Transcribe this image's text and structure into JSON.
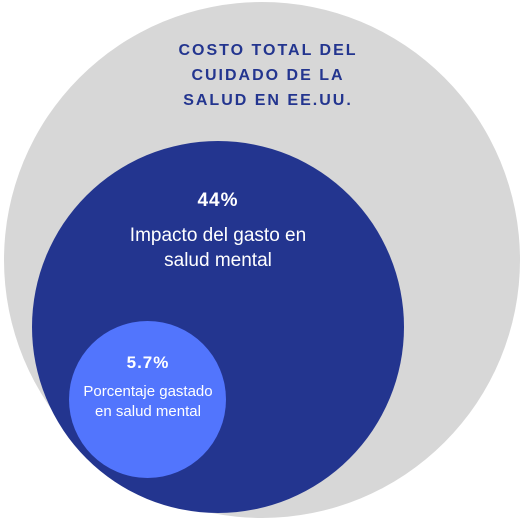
{
  "diagram": {
    "outer": {
      "title_lines": [
        "COSTO TOTAL DEL",
        "CUIDADO DE LA",
        "SALUD EN EE.UU."
      ],
      "color": "#d7d7d7",
      "title_color": "#23358f"
    },
    "middle": {
      "value": "44%",
      "label_lines": [
        "Impacto del gasto en",
        "salud mental"
      ],
      "color": "#23358f",
      "text_color": "#ffffff"
    },
    "inner": {
      "value": "5.7%",
      "label_lines": [
        "Porcentaje gastado",
        "en salud mental"
      ],
      "color": "#5275fd",
      "text_color": "#ffffff"
    }
  }
}
